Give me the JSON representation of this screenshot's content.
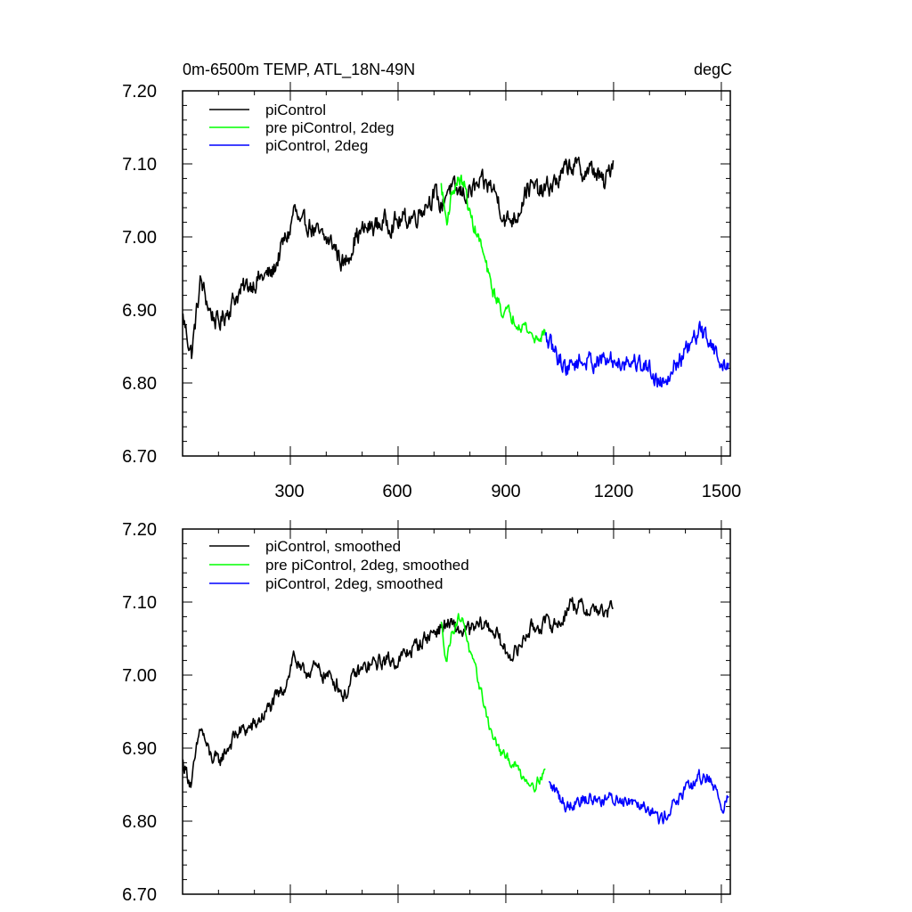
{
  "chart_data": [
    {
      "type": "line",
      "title": "0m-6500m TEMP, ATL_18N-49N",
      "units": "degC",
      "ylim": [
        6.7,
        7.2
      ],
      "xlim": [
        0,
        1525
      ],
      "yticks": [
        "7.20",
        "7.10",
        "7.00",
        "6.90",
        "6.80",
        "6.70"
      ],
      "xticks": [
        "300",
        "600",
        "900",
        "1200",
        "1500"
      ],
      "legend_position": "top-left",
      "series": [
        {
          "name": "piControl",
          "color": "#000000",
          "x_start": 1,
          "x_end": 1200,
          "anchors": [
            [
              1,
              6.89
            ],
            [
              25,
              6.84
            ],
            [
              50,
              6.94
            ],
            [
              75,
              6.9
            ],
            [
              100,
              6.88
            ],
            [
              150,
              6.92
            ],
            [
              200,
              6.94
            ],
            [
              250,
              6.95
            ],
            [
              280,
              6.99
            ],
            [
              300,
              7.01
            ],
            [
              310,
              7.04
            ],
            [
              330,
              7.01
            ],
            [
              350,
              7.02
            ],
            [
              380,
              7.0
            ],
            [
              420,
              6.99
            ],
            [
              450,
              6.96
            ],
            [
              480,
              7.0
            ],
            [
              510,
              7.01
            ],
            [
              560,
              7.02
            ],
            [
              600,
              7.02
            ],
            [
              650,
              7.03
            ],
            [
              700,
              7.06
            ],
            [
              720,
              7.04
            ],
            [
              740,
              7.07
            ],
            [
              760,
              7.06
            ],
            [
              790,
              7.06
            ],
            [
              830,
              7.07
            ],
            [
              860,
              7.07
            ],
            [
              880,
              7.05
            ],
            [
              900,
              7.02
            ],
            [
              930,
              7.03
            ],
            [
              960,
              7.07
            ],
            [
              1000,
              7.06
            ],
            [
              1050,
              7.08
            ],
            [
              1080,
              7.1
            ],
            [
              1110,
              7.09
            ],
            [
              1150,
              7.09
            ],
            [
              1175,
              7.07
            ],
            [
              1200,
              7.11
            ]
          ],
          "noise": 0.012
        },
        {
          "name": "pre piControl, 2deg",
          "color": "#00ff00",
          "x_start": 720,
          "x_end": 1010,
          "anchors": [
            [
              720,
              7.07
            ],
            [
              735,
              7.02
            ],
            [
              750,
              7.06
            ],
            [
              770,
              7.08
            ],
            [
              785,
              7.07
            ],
            [
              800,
              7.03
            ],
            [
              830,
              6.99
            ],
            [
              860,
              6.93
            ],
            [
              890,
              6.9
            ],
            [
              920,
              6.89
            ],
            [
              950,
              6.88
            ],
            [
              980,
              6.86
            ],
            [
              1010,
              6.87
            ]
          ],
          "noise": 0.008
        },
        {
          "name": "piControl, 2deg",
          "color": "#0000ff",
          "x_start": 1010,
          "x_end": 1520,
          "anchors": [
            [
              1010,
              6.86
            ],
            [
              1040,
              6.84
            ],
            [
              1070,
              6.82
            ],
            [
              1100,
              6.83
            ],
            [
              1140,
              6.83
            ],
            [
              1180,
              6.83
            ],
            [
              1220,
              6.83
            ],
            [
              1260,
              6.83
            ],
            [
              1300,
              6.82
            ],
            [
              1330,
              6.8
            ],
            [
              1360,
              6.82
            ],
            [
              1400,
              6.84
            ],
            [
              1440,
              6.87
            ],
            [
              1470,
              6.86
            ],
            [
              1500,
              6.82
            ],
            [
              1520,
              6.83
            ]
          ],
          "noise": 0.011
        }
      ]
    },
    {
      "type": "line",
      "ylim": [
        6.7,
        7.2
      ],
      "xlim": [
        0,
        1525
      ],
      "yticks": [
        "7.20",
        "7.10",
        "7.00",
        "6.90",
        "6.80",
        "6.70"
      ],
      "legend_position": "top-left",
      "series": [
        {
          "name": "piControl, smoothed",
          "color": "#000000",
          "x_start": 1,
          "x_end": 1200,
          "anchors": [
            [
              1,
              6.88
            ],
            [
              25,
              6.85
            ],
            [
              50,
              6.93
            ],
            [
              75,
              6.89
            ],
            [
              100,
              6.88
            ],
            [
              150,
              6.92
            ],
            [
              200,
              6.93
            ],
            [
              250,
              6.96
            ],
            [
              280,
              6.98
            ],
            [
              300,
              7.01
            ],
            [
              310,
              7.03
            ],
            [
              330,
              7.0
            ],
            [
              360,
              7.01
            ],
            [
              400,
              7.0
            ],
            [
              430,
              6.99
            ],
            [
              450,
              6.97
            ],
            [
              480,
              7.0
            ],
            [
              510,
              7.01
            ],
            [
              560,
              7.02
            ],
            [
              600,
              7.02
            ],
            [
              650,
              7.04
            ],
            [
              700,
              7.06
            ],
            [
              740,
              7.07
            ],
            [
              770,
              7.06
            ],
            [
              800,
              7.06
            ],
            [
              840,
              7.07
            ],
            [
              870,
              7.06
            ],
            [
              900,
              7.03
            ],
            [
              930,
              7.03
            ],
            [
              960,
              7.06
            ],
            [
              1000,
              7.07
            ],
            [
              1050,
              7.07
            ],
            [
              1080,
              7.1
            ],
            [
              1120,
              7.09
            ],
            [
              1160,
              7.09
            ],
            [
              1180,
              7.08
            ],
            [
              1200,
              7.1
            ]
          ],
          "noise": 0.009
        },
        {
          "name": "pre piControl, 2deg, smoothed",
          "color": "#00ff00",
          "x_start": 720,
          "x_end": 1010,
          "anchors": [
            [
              720,
              7.07
            ],
            [
              735,
              7.02
            ],
            [
              750,
              7.06
            ],
            [
              770,
              7.08
            ],
            [
              785,
              7.07
            ],
            [
              800,
              7.03
            ],
            [
              830,
              6.98
            ],
            [
              860,
              6.92
            ],
            [
              890,
              6.89
            ],
            [
              920,
              6.88
            ],
            [
              950,
              6.86
            ],
            [
              980,
              6.85
            ],
            [
              1010,
              6.87
            ]
          ],
          "noise": 0.006
        },
        {
          "name": "piControl, 2deg, smoothed",
          "color": "#0000ff",
          "x_start": 1020,
          "x_end": 1520,
          "anchors": [
            [
              1020,
              6.85
            ],
            [
              1040,
              6.84
            ],
            [
              1070,
              6.82
            ],
            [
              1100,
              6.83
            ],
            [
              1140,
              6.83
            ],
            [
              1180,
              6.83
            ],
            [
              1220,
              6.83
            ],
            [
              1260,
              6.83
            ],
            [
              1300,
              6.82
            ],
            [
              1330,
              6.8
            ],
            [
              1360,
              6.82
            ],
            [
              1400,
              6.84
            ],
            [
              1440,
              6.86
            ],
            [
              1470,
              6.86
            ],
            [
              1500,
              6.82
            ],
            [
              1520,
              6.83
            ]
          ],
          "noise": 0.008
        }
      ]
    }
  ]
}
